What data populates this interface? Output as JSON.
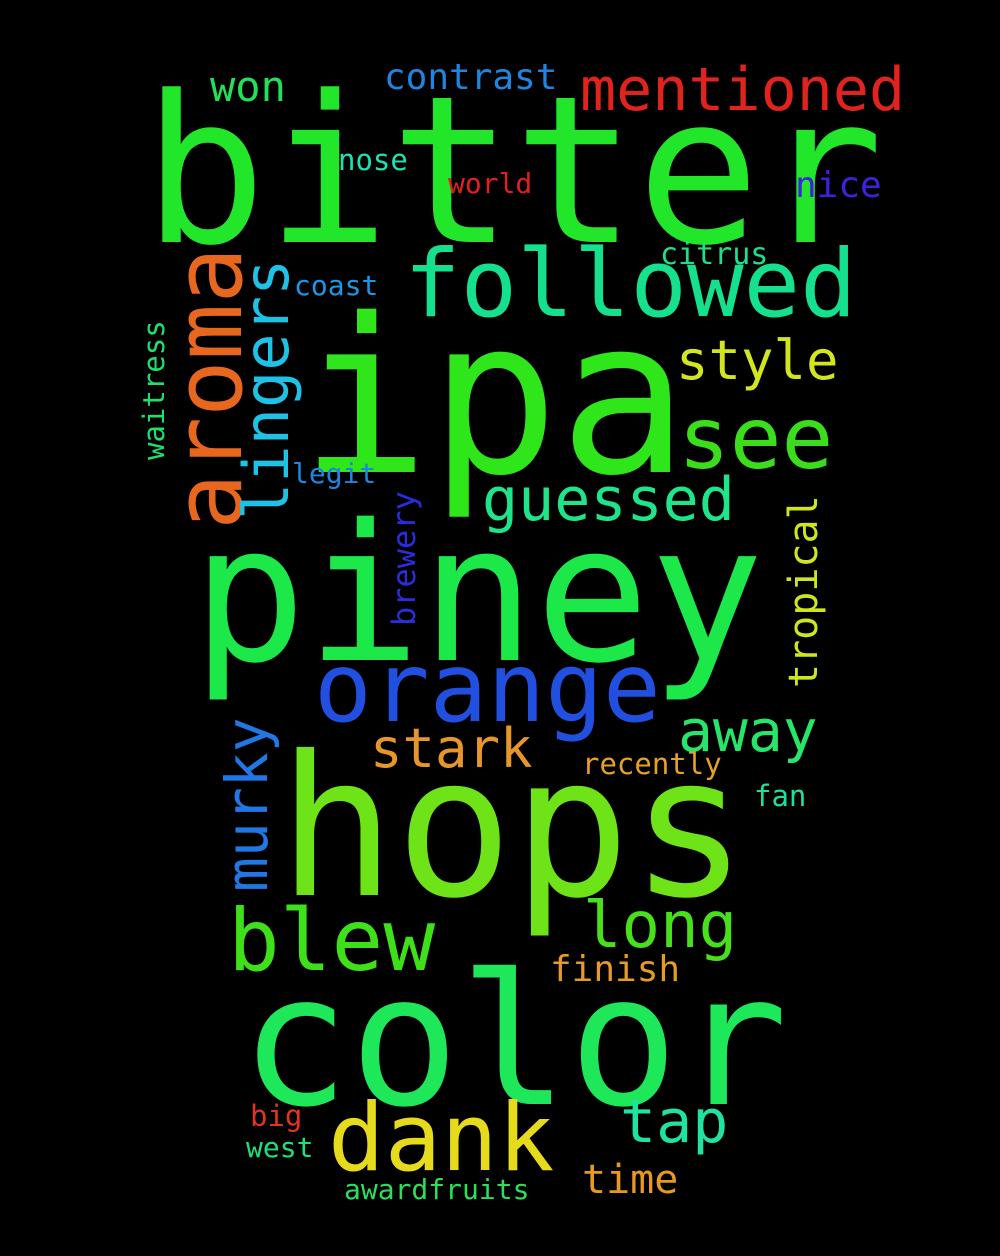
{
  "words": {
    "bitter": {
      "text": "bitter",
      "color": "#22e62a"
    },
    "ipa": {
      "text": "ipa",
      "color": "#2ee61a"
    },
    "piney": {
      "text": "piney",
      "color": "#1ce84a"
    },
    "hops": {
      "text": "hops",
      "color": "#6ee418"
    },
    "color": {
      "text": "color",
      "color": "#1ee85a"
    },
    "orange": {
      "text": "orange",
      "color": "#2150e0"
    },
    "followed": {
      "text": "followed",
      "color": "#14e08e"
    },
    "aroma": {
      "text": "aroma",
      "color": "#e8671f"
    },
    "mentioned": {
      "text": "mentioned",
      "color": "#e0231c"
    },
    "see": {
      "text": "see",
      "color": "#3ade1a"
    },
    "dank": {
      "text": "dank",
      "color": "#e6da1c"
    },
    "blew": {
      "text": "blew",
      "color": "#3ee019"
    },
    "guessed": {
      "text": "guessed",
      "color": "#1ee48a"
    },
    "lingers": {
      "text": "lingers",
      "color": "#1ec2e6"
    },
    "long": {
      "text": "long",
      "color": "#48e01a"
    },
    "style": {
      "text": "style",
      "color": "#d2e61e"
    },
    "murky": {
      "text": "murky",
      "color": "#1f78e6"
    },
    "away": {
      "text": "away",
      "color": "#26e66a"
    },
    "stark": {
      "text": "stark",
      "color": "#e6962a"
    },
    "tap": {
      "text": "tap",
      "color": "#1ee4a0"
    },
    "contrast": {
      "text": "contrast",
      "color": "#1e86e0"
    },
    "won": {
      "text": "won",
      "color": "#22e05a"
    },
    "tropical": {
      "text": "tropical",
      "color": "#cde61e"
    },
    "time": {
      "text": "time",
      "color": "#e69a20"
    },
    "finish": {
      "text": "finish",
      "color": "#e69a28"
    },
    "nice": {
      "text": "nice",
      "color": "#3c22e0"
    },
    "brewery": {
      "text": "brewery",
      "color": "#2a2ce0"
    },
    "nose": {
      "text": "nose",
      "color": "#1ee0b4"
    },
    "world": {
      "text": "world",
      "color": "#e02020"
    },
    "citrus": {
      "text": "citrus",
      "color": "#1ee08a"
    },
    "coast": {
      "text": "coast",
      "color": "#1e96e6"
    },
    "legit": {
      "text": "legit",
      "color": "#1e86e0"
    },
    "waitress": {
      "text": "waitress",
      "color": "#1ee06a"
    },
    "recently": {
      "text": "recently",
      "color": "#e6a028"
    },
    "fan": {
      "text": "fan",
      "color": "#1ee098"
    },
    "awardfruits": {
      "text": "awardfruits",
      "color": "#2ae05a"
    },
    "big": {
      "text": "big",
      "color": "#e0341c"
    },
    "west": {
      "text": "west",
      "color": "#1ee078"
    }
  }
}
